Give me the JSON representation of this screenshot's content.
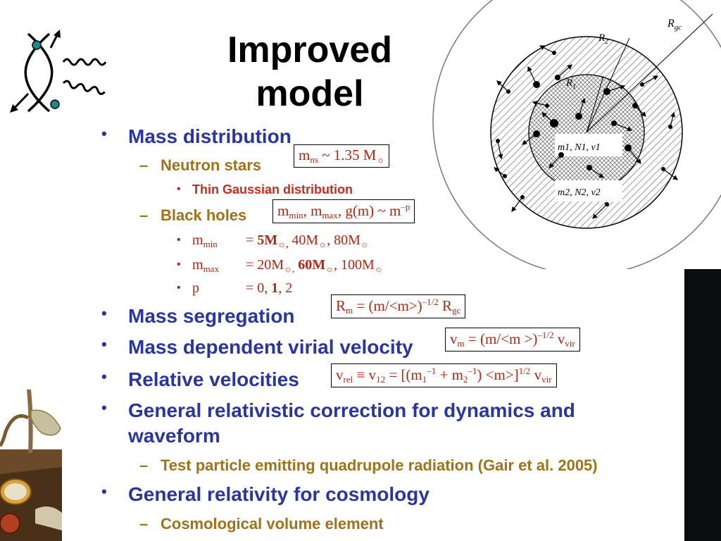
{
  "slide": {
    "title_line1": "Improved",
    "title_line2": "model"
  },
  "bullets": {
    "mass_distribution": "Mass distribution",
    "neutron_stars": "Neutron stars",
    "thin_gaussian": "Thin Gaussian distribution",
    "black_holes": "Black holes",
    "mmin_label": "m",
    "mmin_sub": "min",
    "mmax_label": "m",
    "mmax_sub": "max",
    "p_label": "p",
    "mass_segregation": "Mass segregation",
    "mass_dependent_virial": "Mass dependent virial velocity",
    "relative_velocities": "Relative velocities",
    "gr_dynamics": "General relativistic correction for dynamics and",
    "gr_dynamics_cont": "waveform",
    "test_particle": "Test particle emitting quadrupole radiation (Gair et al. 2005)",
    "gr_cosmology": "General relativity for cosmology",
    "cosmo_volume": "Cosmological volume element"
  },
  "diagram": {
    "R_gc": "R",
    "R_gc_sub": "gc",
    "R2": "R",
    "R2_sub": "2",
    "R1": "R",
    "R1_sub": "1",
    "shell1": "m1, N1, v1",
    "shell2": "m2, N2, v2"
  },
  "colors": {
    "heading": "#2a36a0",
    "sub": "#a0721a",
    "subsub": "#cc2a1a",
    "formula": "#b3260f"
  }
}
